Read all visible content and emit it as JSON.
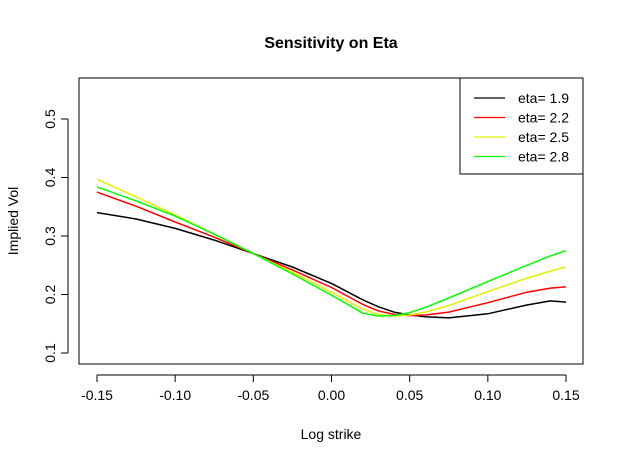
{
  "chart_data": {
    "type": "line",
    "title": "Sensitivity on Eta",
    "xlabel": "Log strike",
    "ylabel": "Implied Vol",
    "xlim": [
      -0.15,
      0.15
    ],
    "ylim": [
      0.1,
      0.55
    ],
    "x_ticks": [
      "-0.15",
      "-0.10",
      "-0.05",
      "0.00",
      "0.05",
      "0.10",
      "0.15"
    ],
    "y_ticks": [
      "0.1",
      "0.2",
      "0.3",
      "0.4",
      "0.5"
    ],
    "legend_position": "top-right",
    "grid": false,
    "x": [
      -0.15,
      -0.125,
      -0.1,
      -0.075,
      -0.05,
      -0.025,
      0.0,
      0.02,
      0.03,
      0.04,
      0.05,
      0.06,
      0.075,
      0.1,
      0.125,
      0.14,
      0.15
    ],
    "series": [
      {
        "name": "eta= 1.9",
        "color": "#000000",
        "values": [
          0.34,
          0.329,
          0.313,
          0.293,
          0.27,
          0.247,
          0.219,
          0.191,
          0.179,
          0.17,
          0.165,
          0.162,
          0.16,
          0.167,
          0.182,
          0.189,
          0.187
        ]
      },
      {
        "name": "eta= 2.2",
        "color": "#ff0000",
        "values": [
          0.375,
          0.351,
          0.324,
          0.298,
          0.27,
          0.242,
          0.212,
          0.183,
          0.172,
          0.166,
          0.164,
          0.165,
          0.17,
          0.186,
          0.204,
          0.211,
          0.213
        ]
      },
      {
        "name": "eta= 2.5",
        "color": "#e0f000",
        "values": [
          0.397,
          0.367,
          0.336,
          0.303,
          0.27,
          0.238,
          0.204,
          0.175,
          0.166,
          0.163,
          0.165,
          0.17,
          0.181,
          0.205,
          0.228,
          0.24,
          0.247
        ]
      },
      {
        "name": "eta= 2.8",
        "color": "#00ff00",
        "values": [
          0.384,
          0.36,
          0.334,
          0.303,
          0.27,
          0.235,
          0.199,
          0.168,
          0.163,
          0.164,
          0.169,
          0.178,
          0.194,
          0.222,
          0.25,
          0.266,
          0.275
        ]
      }
    ]
  }
}
